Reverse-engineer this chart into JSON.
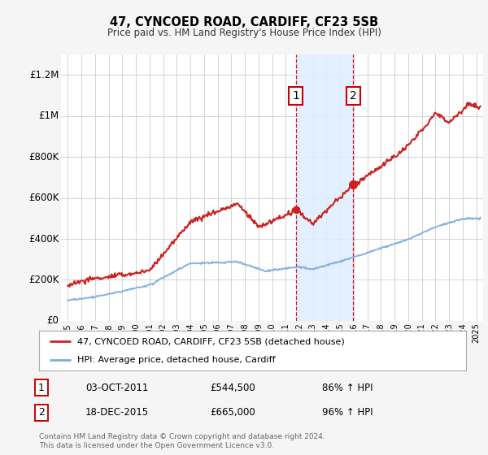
{
  "title": "47, CYNCOED ROAD, CARDIFF, CF23 5SB",
  "subtitle": "Price paid vs. HM Land Registry's House Price Index (HPI)",
  "background_color": "#f5f5f5",
  "plot_bg_color": "#ffffff",
  "grid_color": "#cccccc",
  "red_color": "#cc2222",
  "blue_color": "#7aaadd",
  "highlight_fill": "#ddeeff",
  "sale1_x": 2011.75,
  "sale1_y": 544500,
  "sale2_x": 2015.97,
  "sale2_y": 665000,
  "sale1_date": "03-OCT-2011",
  "sale1_price": "£544,500",
  "sale1_hpi": "86% ↑ HPI",
  "sale2_date": "18-DEC-2015",
  "sale2_price": "£665,000",
  "sale2_hpi": "96% ↑ HPI",
  "legend_line1": "47, CYNCOED ROAD, CARDIFF, CF23 5SB (detached house)",
  "legend_line2": "HPI: Average price, detached house, Cardiff",
  "footer": "Contains HM Land Registry data © Crown copyright and database right 2024.\nThis data is licensed under the Open Government Licence v3.0.",
  "ylim_max": 1300000,
  "xmin": 1994.5,
  "xmax": 2025.5,
  "yticks": [
    0,
    200000,
    400000,
    600000,
    800000,
    1000000,
    1200000
  ],
  "ytick_labels": [
    "£0",
    "£200K",
    "£400K",
    "£600K",
    "£800K",
    "£1M",
    "£1.2M"
  ]
}
